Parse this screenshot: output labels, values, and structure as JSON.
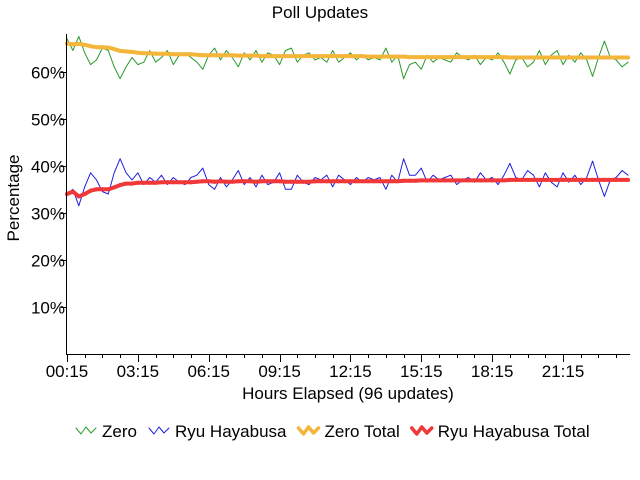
{
  "chart_data": {
    "type": "line",
    "title": "Poll Updates",
    "xlabel": "Hours Elapsed (96 updates)",
    "ylabel": "Percentage",
    "ylim": [
      0,
      68
    ],
    "yticks": [
      10,
      20,
      30,
      40,
      50,
      60
    ],
    "ytick_labels": [
      "10%",
      "20%",
      "30%",
      "40%",
      "50%",
      "60%"
    ],
    "xtick_labels": [
      "00:15",
      "03:15",
      "06:15",
      "09:15",
      "12:15",
      "15:15",
      "18:15",
      "21:15"
    ],
    "xtick_positions": [
      0,
      12,
      24,
      36,
      48,
      60,
      72,
      84
    ],
    "xlim": [
      0,
      95
    ],
    "grid": false,
    "legend_placement": "bottom",
    "series": [
      {
        "name": "Zero",
        "color": "#2a9a2a",
        "thick": false,
        "values": [
          67.0,
          64.5,
          67.5,
          64.0,
          61.5,
          62.5,
          65.0,
          64.5,
          61.0,
          58.5,
          61.0,
          63.0,
          61.5,
          62.0,
          64.5,
          62.0,
          63.0,
          64.5,
          61.5,
          63.5,
          64.0,
          63.0,
          62.0,
          60.5,
          63.5,
          65.0,
          62.5,
          64.5,
          63.0,
          61.0,
          64.0,
          62.5,
          64.5,
          62.0,
          64.0,
          63.5,
          61.5,
          64.5,
          65.0,
          62.0,
          63.5,
          64.0,
          62.5,
          63.0,
          62.0,
          64.5,
          62.0,
          63.0,
          64.0,
          62.5,
          63.5,
          62.5,
          63.0,
          62.5,
          65.0,
          62.0,
          63.5,
          58.5,
          61.5,
          62.0,
          60.5,
          63.5,
          62.0,
          63.0,
          62.5,
          62.0,
          64.0,
          63.0,
          62.5,
          63.5,
          61.5,
          63.0,
          62.5,
          64.0,
          62.0,
          59.5,
          62.5,
          63.0,
          61.0,
          62.0,
          64.5,
          61.5,
          63.5,
          64.5,
          61.5,
          63.5,
          62.0,
          64.0,
          62.5,
          59.0,
          63.0,
          66.5,
          63.0,
          62.5,
          61.0,
          62.0
        ]
      },
      {
        "name": "Ryu Hayabusa",
        "color": "#2020e0",
        "thick": false,
        "values": [
          34.0,
          35.0,
          31.5,
          35.5,
          38.5,
          37.0,
          34.5,
          34.0,
          38.5,
          41.5,
          38.5,
          37.0,
          38.5,
          36.0,
          37.5,
          36.5,
          38.0,
          36.0,
          37.5,
          36.5,
          36.0,
          37.5,
          38.0,
          39.5,
          36.0,
          35.0,
          37.5,
          35.5,
          37.0,
          39.0,
          36.0,
          37.5,
          35.5,
          38.0,
          36.0,
          36.5,
          38.5,
          35.0,
          35.0,
          38.0,
          36.5,
          36.0,
          37.5,
          37.0,
          38.0,
          35.5,
          38.0,
          37.0,
          36.0,
          37.5,
          36.5,
          37.5,
          37.0,
          37.5,
          35.0,
          38.0,
          36.5,
          41.5,
          38.0,
          38.0,
          39.5,
          36.5,
          38.0,
          37.0,
          37.5,
          38.0,
          36.0,
          37.0,
          37.5,
          36.5,
          38.5,
          37.0,
          37.5,
          36.0,
          38.0,
          40.5,
          37.5,
          37.0,
          39.0,
          38.0,
          35.5,
          38.5,
          36.5,
          35.5,
          38.5,
          36.5,
          38.0,
          36.0,
          37.5,
          41.0,
          37.0,
          33.5,
          37.0,
          37.5,
          39.0,
          38.0
        ]
      },
      {
        "name": "Zero Total",
        "color": "#f4b63a",
        "thick": true,
        "values": [
          66.0,
          65.8,
          65.9,
          65.7,
          65.4,
          65.2,
          65.2,
          65.1,
          64.8,
          64.4,
          64.3,
          64.2,
          64.0,
          63.9,
          63.9,
          63.8,
          63.8,
          63.8,
          63.7,
          63.7,
          63.7,
          63.7,
          63.6,
          63.5,
          63.5,
          63.5,
          63.5,
          63.5,
          63.5,
          63.4,
          63.4,
          63.4,
          63.4,
          63.3,
          63.3,
          63.3,
          63.3,
          63.3,
          63.3,
          63.3,
          63.3,
          63.3,
          63.3,
          63.3,
          63.3,
          63.3,
          63.3,
          63.3,
          63.3,
          63.3,
          63.3,
          63.2,
          63.2,
          63.2,
          63.2,
          63.2,
          63.2,
          63.2,
          63.1,
          63.1,
          63.1,
          63.1,
          63.1,
          63.1,
          63.1,
          63.1,
          63.1,
          63.1,
          63.1,
          63.1,
          63.1,
          63.1,
          63.1,
          63.1,
          63.1,
          63.0,
          63.0,
          63.0,
          63.0,
          63.0,
          63.0,
          63.0,
          63.0,
          63.0,
          63.0,
          63.0,
          63.0,
          63.0,
          63.0,
          63.0,
          63.0,
          63.0,
          63.0,
          63.0,
          63.0,
          63.0
        ]
      },
      {
        "name": "Ryu Hayabusa Total",
        "color": "#f03838",
        "thick": true,
        "values": [
          34.0,
          34.5,
          33.5,
          34.0,
          34.7,
          35.0,
          35.0,
          35.0,
          35.4,
          35.9,
          36.2,
          36.2,
          36.4,
          36.4,
          36.4,
          36.4,
          36.5,
          36.5,
          36.5,
          36.5,
          36.5,
          36.5,
          36.6,
          36.7,
          36.7,
          36.6,
          36.7,
          36.6,
          36.6,
          36.7,
          36.7,
          36.7,
          36.6,
          36.7,
          36.7,
          36.7,
          36.7,
          36.6,
          36.6,
          36.6,
          36.6,
          36.6,
          36.7,
          36.7,
          36.7,
          36.7,
          36.7,
          36.7,
          36.7,
          36.7,
          36.7,
          36.7,
          36.7,
          36.7,
          36.7,
          36.7,
          36.7,
          36.8,
          36.8,
          36.8,
          36.9,
          36.9,
          36.9,
          36.9,
          36.9,
          36.9,
          36.9,
          36.9,
          36.9,
          36.9,
          36.9,
          36.9,
          36.9,
          36.9,
          36.9,
          37.0,
          37.0,
          37.0,
          37.0,
          37.0,
          37.0,
          37.0,
          37.0,
          37.0,
          37.0,
          37.0,
          37.0,
          37.0,
          37.0,
          37.0,
          37.0,
          37.0,
          37.0,
          37.0,
          37.0,
          37.0
        ]
      }
    ]
  }
}
